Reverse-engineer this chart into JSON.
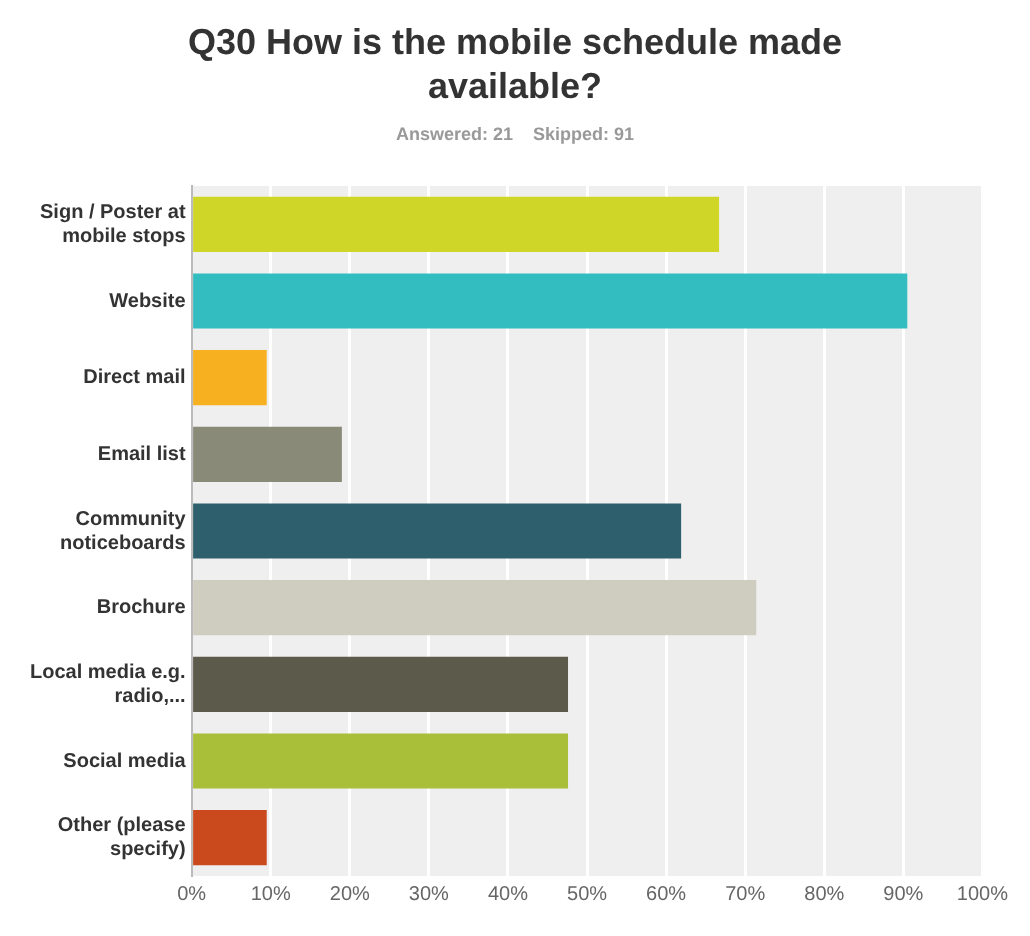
{
  "chart_data": {
    "type": "bar",
    "orientation": "horizontal",
    "title": "Q30 How is the mobile schedule made available?",
    "subtitle": "Answered: 21    Skipped: 91",
    "categories": [
      "Sign / Poster at mobile stops",
      "Website",
      "Direct mail",
      "Email list",
      "Community noticeboards",
      "Brochure",
      "Local media e.g. radio,...",
      "Social media",
      "Other (please specify)"
    ],
    "values": [
      66.7,
      90.5,
      9.5,
      19,
      61.9,
      71.4,
      47.6,
      47.6,
      9.5
    ],
    "colors": [
      "#d0d628",
      "#34bdc0",
      "#f7b020",
      "#8a8a78",
      "#2e5f6c",
      "#cfcdbf",
      "#5b5a4b",
      "#a9be39",
      "#cb4a1d"
    ],
    "xlim": [
      0,
      100
    ],
    "xticks": [
      {
        "value": 0,
        "label": "0%"
      },
      {
        "value": 10,
        "label": "10%"
      },
      {
        "value": 20,
        "label": "20%"
      },
      {
        "value": 30,
        "label": "30%"
      },
      {
        "value": 40,
        "label": "40%"
      },
      {
        "value": 50,
        "label": "50%"
      },
      {
        "value": 60,
        "label": "60%"
      },
      {
        "value": 70,
        "label": "70%"
      },
      {
        "value": 80,
        "label": "80%"
      },
      {
        "value": 90,
        "label": "90%"
      },
      {
        "value": 100,
        "label": "100%"
      }
    ],
    "grid": "x",
    "legend": false
  }
}
